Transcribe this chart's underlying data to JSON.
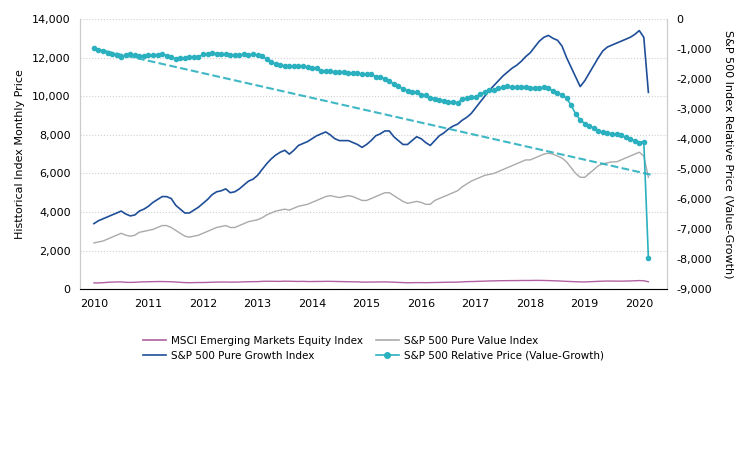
{
  "ylabel_left": "Histtorical Index Monthly Price",
  "ylabel_right": "S&P 500 Index Relative Price (Value-Growth)",
  "xlim": [
    2009.75,
    2020.5
  ],
  "ylim_left": [
    0,
    14000
  ],
  "ylim_right": [
    -9000,
    0
  ],
  "yticks_left": [
    0,
    2000,
    4000,
    6000,
    8000,
    10000,
    12000,
    14000
  ],
  "yticks_right": [
    -9000,
    -8000,
    -7000,
    -6000,
    -5000,
    -4000,
    -3000,
    -2000,
    -1000,
    0
  ],
  "xticks": [
    2010,
    2011,
    2012,
    2013,
    2014,
    2015,
    2016,
    2017,
    2018,
    2019,
    2020
  ],
  "colors": {
    "msci": "#b060a0",
    "growth": "#1f4e99",
    "value": "#aaaaaa",
    "relative": "#2ab0bf",
    "trendline": "#2ab0bf",
    "grid": "#d0d0d0",
    "background": "#ffffff"
  },
  "msci_x": [
    2010.0,
    2010.083,
    2010.167,
    2010.25,
    2010.333,
    2010.417,
    2010.5,
    2010.583,
    2010.667,
    2010.75,
    2010.833,
    2010.917,
    2011.0,
    2011.083,
    2011.167,
    2011.25,
    2011.333,
    2011.417,
    2011.5,
    2011.583,
    2011.667,
    2011.75,
    2011.833,
    2011.917,
    2012.0,
    2012.083,
    2012.167,
    2012.25,
    2012.333,
    2012.417,
    2012.5,
    2012.583,
    2012.667,
    2012.75,
    2012.833,
    2012.917,
    2013.0,
    2013.083,
    2013.167,
    2013.25,
    2013.333,
    2013.417,
    2013.5,
    2013.583,
    2013.667,
    2013.75,
    2013.833,
    2013.917,
    2014.0,
    2014.083,
    2014.167,
    2014.25,
    2014.333,
    2014.417,
    2014.5,
    2014.583,
    2014.667,
    2014.75,
    2014.833,
    2014.917,
    2015.0,
    2015.083,
    2015.167,
    2015.25,
    2015.333,
    2015.417,
    2015.5,
    2015.583,
    2015.667,
    2015.75,
    2015.833,
    2015.917,
    2016.0,
    2016.083,
    2016.167,
    2016.25,
    2016.333,
    2016.417,
    2016.5,
    2016.583,
    2016.667,
    2016.75,
    2016.833,
    2016.917,
    2017.0,
    2017.083,
    2017.167,
    2017.25,
    2017.333,
    2017.417,
    2017.5,
    2017.583,
    2017.667,
    2017.75,
    2017.833,
    2017.917,
    2018.0,
    2018.083,
    2018.167,
    2018.25,
    2018.333,
    2018.417,
    2018.5,
    2018.583,
    2018.667,
    2018.75,
    2018.833,
    2018.917,
    2019.0,
    2019.083,
    2019.167,
    2019.25,
    2019.333,
    2019.417,
    2019.5,
    2019.583,
    2019.667,
    2019.75,
    2019.833,
    2019.917,
    2020.0,
    2020.083,
    2020.167
  ],
  "msci_y": [
    330,
    330,
    340,
    360,
    370,
    380,
    380,
    360,
    355,
    360,
    375,
    385,
    390,
    395,
    400,
    400,
    395,
    390,
    375,
    360,
    345,
    340,
    345,
    350,
    350,
    355,
    365,
    370,
    375,
    375,
    370,
    370,
    375,
    385,
    390,
    395,
    395,
    410,
    415,
    415,
    410,
    410,
    420,
    415,
    410,
    405,
    410,
    400,
    400,
    405,
    405,
    410,
    410,
    405,
    400,
    395,
    390,
    385,
    385,
    370,
    370,
    375,
    375,
    380,
    380,
    375,
    365,
    355,
    345,
    335,
    340,
    345,
    345,
    340,
    345,
    350,
    355,
    360,
    365,
    365,
    370,
    380,
    395,
    400,
    405,
    415,
    420,
    430,
    435,
    440,
    445,
    445,
    450,
    450,
    455,
    455,
    455,
    460,
    460,
    455,
    450,
    440,
    435,
    420,
    410,
    400,
    390,
    380,
    380,
    390,
    400,
    410,
    420,
    425,
    425,
    420,
    420,
    425,
    430,
    440,
    450,
    440,
    390
  ],
  "growth_x": [
    2010.0,
    2010.083,
    2010.167,
    2010.25,
    2010.333,
    2010.417,
    2010.5,
    2010.583,
    2010.667,
    2010.75,
    2010.833,
    2010.917,
    2011.0,
    2011.083,
    2011.167,
    2011.25,
    2011.333,
    2011.417,
    2011.5,
    2011.583,
    2011.667,
    2011.75,
    2011.833,
    2011.917,
    2012.0,
    2012.083,
    2012.167,
    2012.25,
    2012.333,
    2012.417,
    2012.5,
    2012.583,
    2012.667,
    2012.75,
    2012.833,
    2012.917,
    2013.0,
    2013.083,
    2013.167,
    2013.25,
    2013.333,
    2013.417,
    2013.5,
    2013.583,
    2013.667,
    2013.75,
    2013.833,
    2013.917,
    2014.0,
    2014.083,
    2014.167,
    2014.25,
    2014.333,
    2014.417,
    2014.5,
    2014.583,
    2014.667,
    2014.75,
    2014.833,
    2014.917,
    2015.0,
    2015.083,
    2015.167,
    2015.25,
    2015.333,
    2015.417,
    2015.5,
    2015.583,
    2015.667,
    2015.75,
    2015.833,
    2015.917,
    2016.0,
    2016.083,
    2016.167,
    2016.25,
    2016.333,
    2016.417,
    2016.5,
    2016.583,
    2016.667,
    2016.75,
    2016.833,
    2016.917,
    2017.0,
    2017.083,
    2017.167,
    2017.25,
    2017.333,
    2017.417,
    2017.5,
    2017.583,
    2017.667,
    2017.75,
    2017.833,
    2017.917,
    2018.0,
    2018.083,
    2018.167,
    2018.25,
    2018.333,
    2018.417,
    2018.5,
    2018.583,
    2018.667,
    2018.75,
    2018.833,
    2018.917,
    2019.0,
    2019.083,
    2019.167,
    2019.25,
    2019.333,
    2019.417,
    2019.5,
    2019.583,
    2019.667,
    2019.75,
    2019.833,
    2019.917,
    2020.0,
    2020.083,
    2020.167
  ],
  "growth_y": [
    3400,
    3550,
    3650,
    3750,
    3850,
    3950,
    4050,
    3900,
    3800,
    3850,
    4050,
    4150,
    4300,
    4500,
    4650,
    4800,
    4800,
    4700,
    4350,
    4150,
    3950,
    3950,
    4100,
    4250,
    4450,
    4650,
    4900,
    5050,
    5100,
    5200,
    5000,
    5050,
    5200,
    5400,
    5600,
    5700,
    5900,
    6200,
    6500,
    6750,
    6950,
    7100,
    7200,
    7000,
    7200,
    7450,
    7550,
    7650,
    7800,
    7950,
    8050,
    8150,
    8000,
    7800,
    7700,
    7700,
    7700,
    7600,
    7500,
    7350,
    7500,
    7700,
    7950,
    8050,
    8200,
    8200,
    7900,
    7700,
    7500,
    7500,
    7700,
    7900,
    7800,
    7600,
    7450,
    7700,
    7950,
    8100,
    8300,
    8450,
    8550,
    8750,
    8900,
    9100,
    9400,
    9700,
    10000,
    10300,
    10550,
    10800,
    11050,
    11250,
    11450,
    11600,
    11800,
    12050,
    12250,
    12550,
    12850,
    13050,
    13150,
    13000,
    12900,
    12600,
    12000,
    11500,
    11000,
    10500,
    10800,
    11200,
    11600,
    12000,
    12350,
    12550,
    12650,
    12750,
    12850,
    12950,
    13050,
    13200,
    13400,
    13050,
    10200
  ],
  "value_x": [
    2010.0,
    2010.083,
    2010.167,
    2010.25,
    2010.333,
    2010.417,
    2010.5,
    2010.583,
    2010.667,
    2010.75,
    2010.833,
    2010.917,
    2011.0,
    2011.083,
    2011.167,
    2011.25,
    2011.333,
    2011.417,
    2011.5,
    2011.583,
    2011.667,
    2011.75,
    2011.833,
    2011.917,
    2012.0,
    2012.083,
    2012.167,
    2012.25,
    2012.333,
    2012.417,
    2012.5,
    2012.583,
    2012.667,
    2012.75,
    2012.833,
    2012.917,
    2013.0,
    2013.083,
    2013.167,
    2013.25,
    2013.333,
    2013.417,
    2013.5,
    2013.583,
    2013.667,
    2013.75,
    2013.833,
    2013.917,
    2014.0,
    2014.083,
    2014.167,
    2014.25,
    2014.333,
    2014.417,
    2014.5,
    2014.583,
    2014.667,
    2014.75,
    2014.833,
    2014.917,
    2015.0,
    2015.083,
    2015.167,
    2015.25,
    2015.333,
    2015.417,
    2015.5,
    2015.583,
    2015.667,
    2015.75,
    2015.833,
    2015.917,
    2016.0,
    2016.083,
    2016.167,
    2016.25,
    2016.333,
    2016.417,
    2016.5,
    2016.583,
    2016.667,
    2016.75,
    2016.833,
    2016.917,
    2017.0,
    2017.083,
    2017.167,
    2017.25,
    2017.333,
    2017.417,
    2017.5,
    2017.583,
    2017.667,
    2017.75,
    2017.833,
    2017.917,
    2018.0,
    2018.083,
    2018.167,
    2018.25,
    2018.333,
    2018.417,
    2018.5,
    2018.583,
    2018.667,
    2018.75,
    2018.833,
    2018.917,
    2019.0,
    2019.083,
    2019.167,
    2019.25,
    2019.333,
    2019.417,
    2019.5,
    2019.583,
    2019.667,
    2019.75,
    2019.833,
    2019.917,
    2020.0,
    2020.083,
    2020.167
  ],
  "value_y": [
    2400,
    2450,
    2500,
    2600,
    2700,
    2800,
    2900,
    2800,
    2750,
    2800,
    2950,
    3000,
    3050,
    3100,
    3200,
    3300,
    3300,
    3200,
    3050,
    2900,
    2750,
    2700,
    2750,
    2800,
    2900,
    3000,
    3100,
    3200,
    3250,
    3300,
    3200,
    3200,
    3300,
    3400,
    3500,
    3550,
    3600,
    3700,
    3850,
    3950,
    4050,
    4100,
    4150,
    4100,
    4200,
    4300,
    4350,
    4400,
    4500,
    4600,
    4700,
    4800,
    4850,
    4800,
    4750,
    4800,
    4850,
    4800,
    4700,
    4600,
    4600,
    4700,
    4800,
    4900,
    5000,
    5000,
    4850,
    4700,
    4550,
    4450,
    4500,
    4550,
    4500,
    4400,
    4400,
    4600,
    4700,
    4800,
    4900,
    5000,
    5100,
    5300,
    5450,
    5600,
    5700,
    5800,
    5900,
    5950,
    6000,
    6100,
    6200,
    6300,
    6400,
    6500,
    6600,
    6700,
    6700,
    6800,
    6900,
    7000,
    7050,
    7000,
    6900,
    6800,
    6600,
    6300,
    6000,
    5800,
    5800,
    6000,
    6200,
    6400,
    6500,
    6550,
    6600,
    6600,
    6700,
    6800,
    6900,
    7000,
    7100,
    6900,
    5800
  ],
  "rel_x": [
    2010.0,
    2010.083,
    2010.167,
    2010.25,
    2010.333,
    2010.417,
    2010.5,
    2010.583,
    2010.667,
    2010.75,
    2010.833,
    2010.917,
    2011.0,
    2011.083,
    2011.167,
    2011.25,
    2011.333,
    2011.417,
    2011.5,
    2011.583,
    2011.667,
    2011.75,
    2011.833,
    2011.917,
    2012.0,
    2012.083,
    2012.167,
    2012.25,
    2012.333,
    2012.417,
    2012.5,
    2012.583,
    2012.667,
    2012.75,
    2012.833,
    2012.917,
    2013.0,
    2013.083,
    2013.167,
    2013.25,
    2013.333,
    2013.417,
    2013.5,
    2013.583,
    2013.667,
    2013.75,
    2013.833,
    2013.917,
    2014.0,
    2014.083,
    2014.167,
    2014.25,
    2014.333,
    2014.417,
    2014.5,
    2014.583,
    2014.667,
    2014.75,
    2014.833,
    2014.917,
    2015.0,
    2015.083,
    2015.167,
    2015.25,
    2015.333,
    2015.417,
    2015.5,
    2015.583,
    2015.667,
    2015.75,
    2015.833,
    2015.917,
    2016.0,
    2016.083,
    2016.167,
    2016.25,
    2016.333,
    2016.417,
    2016.5,
    2016.583,
    2016.667,
    2016.75,
    2016.833,
    2016.917,
    2017.0,
    2017.083,
    2017.167,
    2017.25,
    2017.333,
    2017.417,
    2017.5,
    2017.583,
    2017.667,
    2017.75,
    2017.833,
    2017.917,
    2018.0,
    2018.083,
    2018.167,
    2018.25,
    2018.333,
    2018.417,
    2018.5,
    2018.583,
    2018.667,
    2018.75,
    2018.833,
    2018.917,
    2019.0,
    2019.083,
    2019.167,
    2019.25,
    2019.333,
    2019.417,
    2019.5,
    2019.583,
    2019.667,
    2019.75,
    2019.833,
    2019.917,
    2020.0,
    2020.083,
    2020.167
  ],
  "rel_y": [
    -980,
    -1030,
    -1080,
    -1130,
    -1150,
    -1200,
    -1250,
    -1200,
    -1180,
    -1200,
    -1220,
    -1230,
    -1200,
    -1200,
    -1200,
    -1180,
    -1220,
    -1260,
    -1340,
    -1290,
    -1300,
    -1250,
    -1260,
    -1270,
    -1180,
    -1170,
    -1140,
    -1150,
    -1150,
    -1170,
    -1190,
    -1200,
    -1200,
    -1180,
    -1190,
    -1180,
    -1210,
    -1240,
    -1330,
    -1430,
    -1500,
    -1540,
    -1560,
    -1570,
    -1580,
    -1580,
    -1580,
    -1600,
    -1630,
    -1640,
    -1730,
    -1740,
    -1740,
    -1770,
    -1780,
    -1780,
    -1800,
    -1810,
    -1810,
    -1840,
    -1840,
    -1840,
    -1920,
    -1920,
    -1990,
    -2080,
    -2160,
    -2240,
    -2330,
    -2390,
    -2420,
    -2440,
    -2530,
    -2540,
    -2620,
    -2650,
    -2690,
    -2720,
    -2760,
    -2760,
    -2790,
    -2680,
    -2620,
    -2600,
    -2600,
    -2500,
    -2430,
    -2380,
    -2350,
    -2310,
    -2270,
    -2240,
    -2280,
    -2280,
    -2280,
    -2270,
    -2300,
    -2300,
    -2300,
    -2270,
    -2300,
    -2400,
    -2460,
    -2530,
    -2640,
    -2870,
    -3160,
    -3360,
    -3480,
    -3560,
    -3640,
    -3720,
    -3770,
    -3800,
    -3820,
    -3840,
    -3870,
    -3940,
    -3980,
    -4060,
    -4120,
    -4080,
    -7950
  ],
  "trendline_x": [
    2010.0,
    2020.25
  ],
  "trendline_y": [
    -980,
    -5200
  ]
}
